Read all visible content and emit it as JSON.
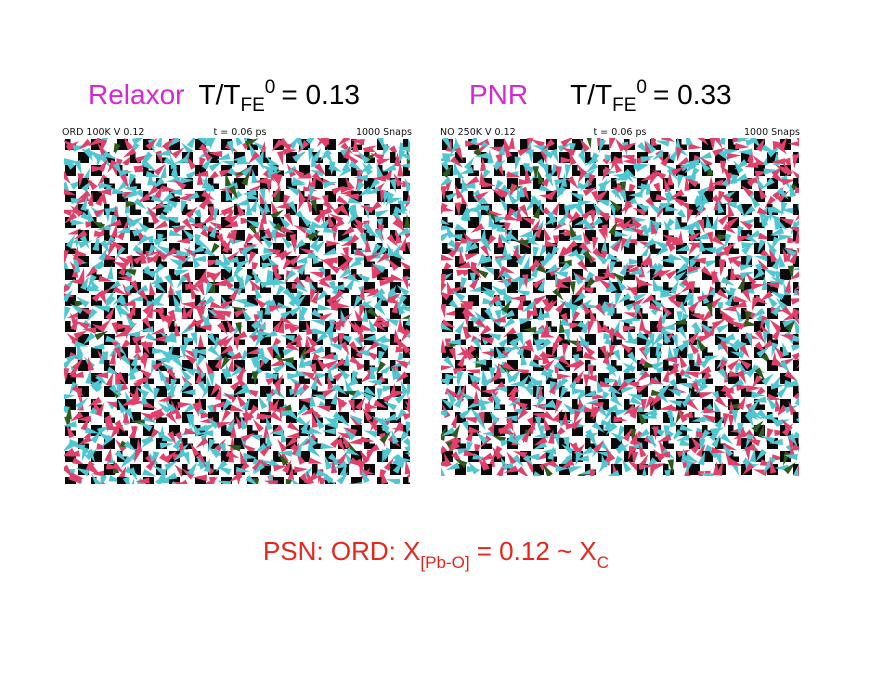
{
  "panels": [
    {
      "kind": "Relaxor",
      "ratio_main": "T/T",
      "ratio_sub": "FE",
      "ratio_sup": "0",
      "ratio_value": "= 0.13",
      "header_left": "ORD  100K  V  0.12",
      "header_time": "t = 0.06 ps",
      "header_right": "1000  Snaps"
    },
    {
      "kind": "PNR",
      "ratio_main": "T/T",
      "ratio_sub": "FE",
      "ratio_sup": "0",
      "ratio_value": "= 0.33",
      "header_left": "NO  250K  V  0.12",
      "header_time": "t = 0.06 ps",
      "header_right": "1000  Snaps"
    }
  ],
  "footer": {
    "prefix": "PSN:  ORD:  X",
    "sub1": "[Pb-O]",
    "middle": " = 0.12 ~ X",
    "sub2": "C"
  },
  "colors": {
    "pink": "#e0406a",
    "cyan": "#4fc6d2",
    "black": "#0a0a0a",
    "green": "#2e5a1c",
    "kind_label": "#d428d4",
    "footer_text": "#e8251c"
  }
}
